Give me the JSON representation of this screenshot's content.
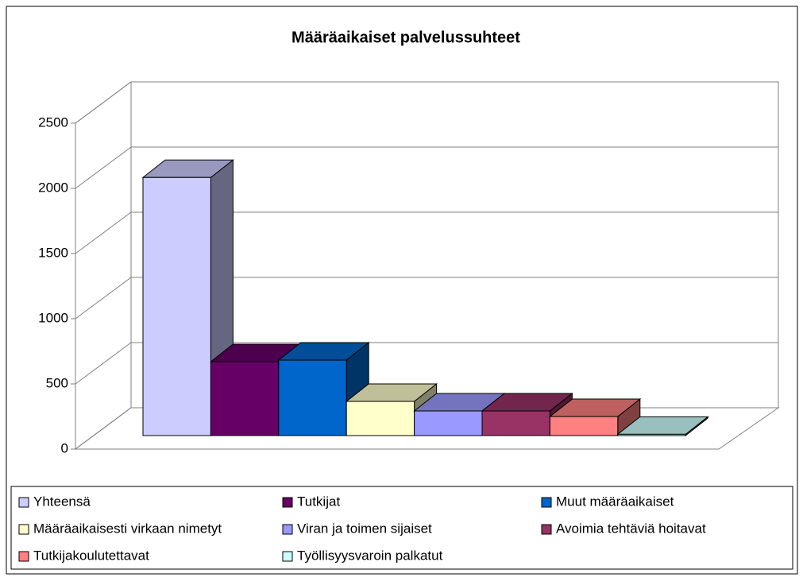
{
  "chart_data": {
    "type": "bar3d",
    "title": "Määräaikaiset palvelussuhteet",
    "series": [
      {
        "name": "Yhteensä",
        "color": "#ccccff",
        "values": [
          1980
        ]
      },
      {
        "name": "Tutkijat",
        "color": "#660066",
        "values": [
          567
        ]
      },
      {
        "name": "Muut määräaikaiset",
        "color": "#0066cc",
        "values": [
          579
        ]
      },
      {
        "name": "Määräaikaisesti virkaan nimetyt",
        "color": "#ffffcc",
        "values": [
          262
        ]
      },
      {
        "name": "Viran ja toimen sijaiset",
        "color": "#9999ff",
        "values": [
          189
        ]
      },
      {
        "name": "Avoimia tehtäviä hoitavat",
        "color": "#993366",
        "values": [
          189
        ]
      },
      {
        "name": "Tutkijakoulutettavat",
        "color": "#ff8080",
        "values": [
          146
        ]
      },
      {
        "name": "Työllisyysvaroin palkatut",
        "color": "#ccffff",
        "values": [
          10
        ]
      }
    ],
    "ylim": [
      0,
      2500
    ],
    "yticks": [
      0,
      500,
      1000,
      1500,
      2000,
      2500
    ],
    "grid": true,
    "legend": "bottom"
  }
}
